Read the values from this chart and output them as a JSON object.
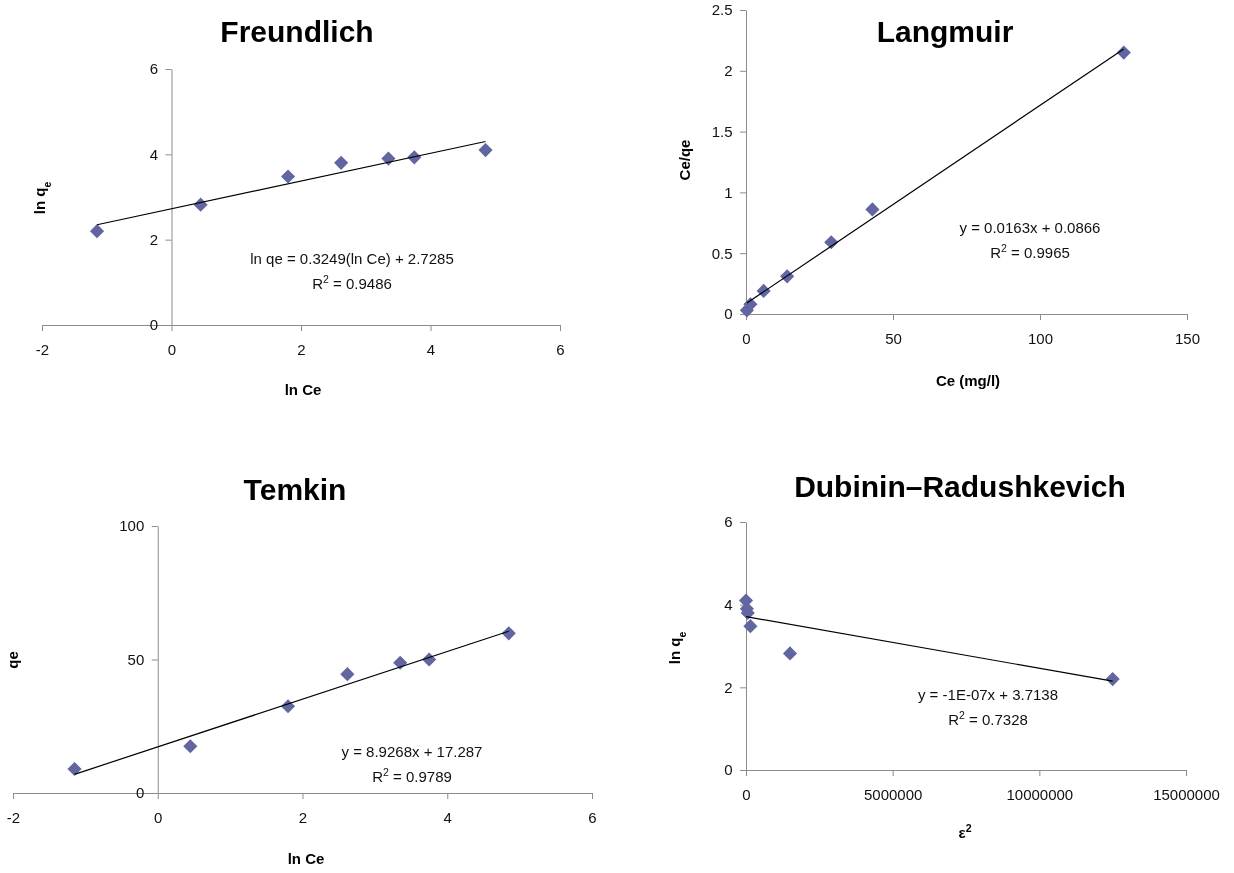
{
  "chart_data": [
    {
      "type": "scatter",
      "title": "Freundlich",
      "xlabel": "ln Ce",
      "ylabel": "ln q$_{e}$",
      "xlim": [
        -2,
        6
      ],
      "xticks": [
        -2,
        0,
        2,
        4,
        6
      ],
      "ylim": [
        0,
        6
      ],
      "yticks": [
        0,
        2,
        4,
        6
      ],
      "grid": false,
      "series": [
        {
          "marker": "diamond",
          "color": "#6165a0",
          "x": [
            -1.15,
            0.45,
            1.8,
            2.62,
            3.35,
            3.75,
            4.85
          ],
          "values": [
            2.2,
            2.82,
            3.48,
            3.8,
            3.9,
            3.93,
            4.1
          ]
        },
        {
          "type": "line",
          "marker": "none",
          "color": "#000000",
          "x": [
            -1.15,
            4.85
          ],
          "values": [
            2.35,
            4.3
          ]
        }
      ],
      "annotations": [
        "ln qe = 0.3249(ln Ce) + 2.7285",
        "R$^{2}$ = 0.9486"
      ]
    },
    {
      "type": "scatter",
      "title": "Langmuir",
      "xlabel": "Ce (mg/l)",
      "ylabel": "Ce/qe",
      "xlim": [
        0,
        150
      ],
      "xticks": [
        0,
        50,
        100,
        150
      ],
      "ylim": [
        0,
        2.5
      ],
      "yticks": [
        0,
        0.5,
        1,
        1.5,
        2,
        2.5
      ],
      "grid": false,
      "series": [
        {
          "marker": "diamond",
          "color": "#6165a0",
          "x": [
            0.3,
            1.5,
            6,
            14,
            29,
            43,
            128.5
          ],
          "values": [
            0.03,
            0.08,
            0.19,
            0.31,
            0.59,
            0.86,
            2.15
          ]
        },
        {
          "type": "line",
          "marker": "none",
          "color": "#000000",
          "x": [
            0.3,
            128.5
          ],
          "values": [
            0.09,
            2.18
          ]
        }
      ],
      "annotations": [
        "y = 0.0163x + 0.0866",
        "R$^{2}$ = 0.9965"
      ]
    },
    {
      "type": "scatter",
      "title": "Temkin",
      "xlabel": "ln Ce",
      "ylabel": "qe",
      "xlim": [
        -2,
        6
      ],
      "xticks": [
        -2,
        0,
        2,
        4,
        6
      ],
      "ylim": [
        0,
        100
      ],
      "yticks": [
        0,
        50,
        100
      ],
      "grid": false,
      "series": [
        {
          "marker": "diamond",
          "color": "#6165a0",
          "x": [
            -1.15,
            0.45,
            1.8,
            2.62,
            3.35,
            3.75,
            4.85
          ],
          "values": [
            9,
            17.5,
            32.5,
            44.5,
            48.8,
            50,
            59.8
          ]
        },
        {
          "type": "line",
          "marker": "none",
          "color": "#000000",
          "x": [
            -1.15,
            4.85
          ],
          "values": [
            7,
            60.6
          ]
        }
      ],
      "annotations": [
        "y = 8.9268x + 17.287",
        "R$^{2}$ = 0.9789"
      ]
    },
    {
      "type": "scatter",
      "title": "Dubinin–Radushkevich",
      "xlabel": "ε$^{2}$",
      "ylabel": "ln q$_{e}$",
      "xlim": [
        0,
        15000000
      ],
      "xticks": [
        0,
        5000000,
        10000000,
        15000000
      ],
      "ylim": [
        0,
        6
      ],
      "yticks": [
        0,
        2,
        4,
        6
      ],
      "grid": false,
      "series": [
        {
          "marker": "diamond",
          "color": "#6165a0",
          "x": [
            0,
            30000,
            60000,
            150000,
            1500000,
            12500000
          ],
          "values": [
            4.1,
            3.9,
            3.8,
            3.48,
            2.82,
            2.2
          ]
        },
        {
          "type": "line",
          "marker": "none",
          "color": "#000000",
          "x": [
            0,
            12500000
          ],
          "values": [
            3.71,
            2.15
          ]
        }
      ],
      "annotations": [
        "y = -1E-07x + 3.7138",
        "R$^{2}$ = 0.7328"
      ]
    }
  ]
}
